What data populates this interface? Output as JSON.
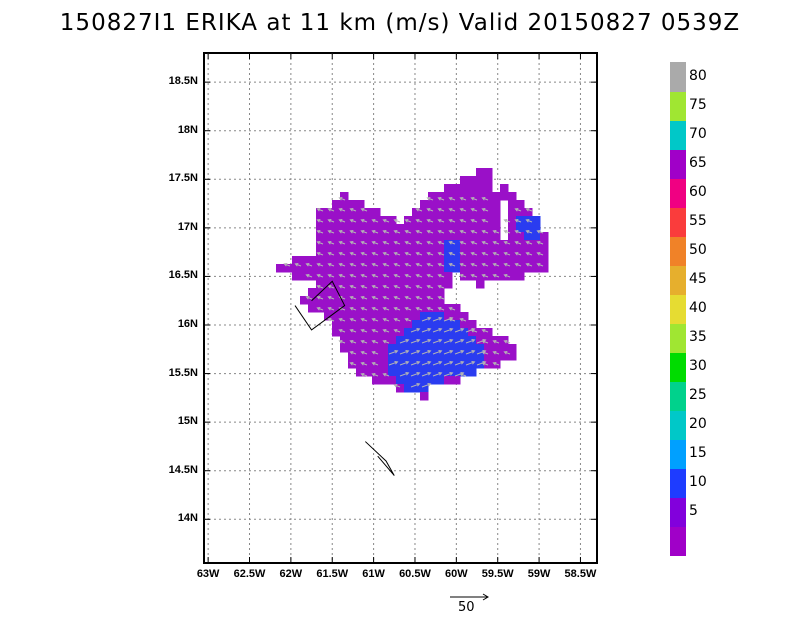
{
  "title": "150827I1 ERIKA at 11 km (m/s) Valid 20150827 0539Z",
  "lat_ticks": [
    {
      "label": "18.5N",
      "lat": 18.5
    },
    {
      "label": "18N",
      "lat": 18.0
    },
    {
      "label": "17.5N",
      "lat": 17.5
    },
    {
      "label": "17N",
      "lat": 17.0
    },
    {
      "label": "16.5N",
      "lat": 16.5
    },
    {
      "label": "16N",
      "lat": 16.0
    },
    {
      "label": "15.5N",
      "lat": 15.5
    },
    {
      "label": "15N",
      "lat": 15.0
    },
    {
      "label": "14.5N",
      "lat": 14.5
    },
    {
      "label": "14N",
      "lat": 14.0
    }
  ],
  "lon_ticks": [
    {
      "label": "63W",
      "lon": -63.0
    },
    {
      "label": "62.5W",
      "lon": -62.5
    },
    {
      "label": "62W",
      "lon": -62.0
    },
    {
      "label": "61.5W",
      "lon": -61.5
    },
    {
      "label": "61W",
      "lon": -61.0
    },
    {
      "label": "60.5W",
      "lon": -60.5
    },
    {
      "label": "60W",
      "lon": -60.0
    },
    {
      "label": "59.5W",
      "lon": -59.5
    },
    {
      "label": "59W",
      "lon": -59.0
    },
    {
      "label": "58.5W",
      "lon": -58.5
    }
  ],
  "map_extent": {
    "lon_min": -63.05,
    "lon_max": -58.3,
    "lat_min": 13.55,
    "lat_max": 18.8
  },
  "colorbar": {
    "segments": [
      {
        "label": "",
        "color": "#a000c8"
      },
      {
        "label": "5",
        "color": "#8200dc"
      },
      {
        "label": "10",
        "color": "#1e3cff"
      },
      {
        "label": "15",
        "color": "#00a0ff"
      },
      {
        "label": "20",
        "color": "#00c8c8"
      },
      {
        "label": "25",
        "color": "#00d28c"
      },
      {
        "label": "30",
        "color": "#00dc00"
      },
      {
        "label": "35",
        "color": "#a0e632"
      },
      {
        "label": "40",
        "color": "#e6dc32"
      },
      {
        "label": "45",
        "color": "#e6af2d"
      },
      {
        "label": "50",
        "color": "#f08228"
      },
      {
        "label": "55",
        "color": "#fa3c3c"
      },
      {
        "label": "60",
        "color": "#f00082"
      },
      {
        "label": "65",
        "color": "#a000c8"
      },
      {
        "label": "70",
        "color": "#00c8c8"
      },
      {
        "label": "75",
        "color": "#a0e632"
      },
      {
        "label": "80",
        "color": "#aaaaaa"
      }
    ]
  },
  "field_colors": {
    "purple": "#9a10c8",
    "blue": "#2a3cf0",
    "arrow": "#b4b4b4"
  },
  "reference_vector": {
    "label": "50",
    "speed": 50
  },
  "aircraft_tracks": [
    [
      [
        -61.75,
        16.25
      ],
      [
        -61.5,
        16.45
      ],
      [
        -61.35,
        16.2
      ],
      [
        -61.75,
        15.95
      ],
      [
        -61.95,
        16.2
      ]
    ],
    [
      [
        -61.1,
        14.8
      ],
      [
        -60.85,
        14.6
      ],
      [
        -60.75,
        14.45
      ],
      [
        -60.95,
        14.65
      ]
    ]
  ]
}
